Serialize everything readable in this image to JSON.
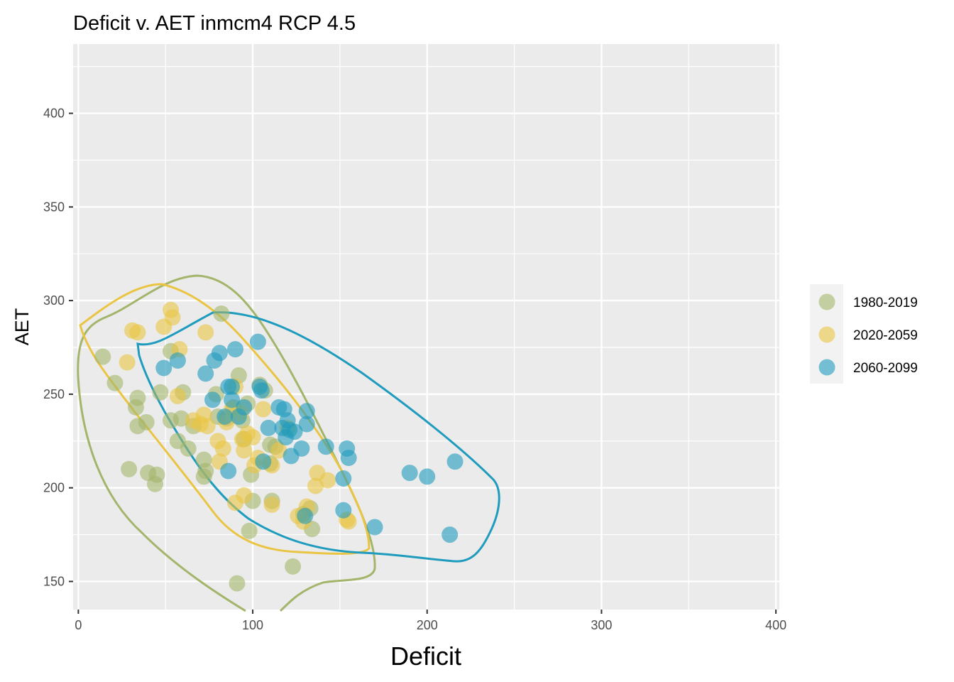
{
  "chart_data": {
    "type": "scatter",
    "title": "Deficit v. AET inmcm4 RCP 4.5",
    "xlabel": "Deficit",
    "ylabel": "AET",
    "xlim": [
      -3,
      402
    ],
    "ylim": [
      135,
      437
    ],
    "x_ticks": [
      0,
      100,
      200,
      300,
      400
    ],
    "y_ticks": [
      150,
      200,
      250,
      300,
      350,
      400
    ],
    "grid": true,
    "legend": "right",
    "series": [
      {
        "name": "1980-2019",
        "color": "#A3B56B",
        "points": [
          [
            14,
            270
          ],
          [
            21,
            256
          ],
          [
            29,
            210
          ],
          [
            33,
            243
          ],
          [
            34,
            233
          ],
          [
            34,
            248
          ],
          [
            39,
            235
          ],
          [
            40,
            208
          ],
          [
            44,
            202
          ],
          [
            45,
            207
          ],
          [
            47,
            251
          ],
          [
            53,
            273
          ],
          [
            53,
            236
          ],
          [
            57,
            225
          ],
          [
            59,
            237
          ],
          [
            60,
            251
          ],
          [
            63,
            221
          ],
          [
            66,
            233
          ],
          [
            72,
            215
          ],
          [
            72,
            206
          ],
          [
            73,
            209
          ],
          [
            79,
            250
          ],
          [
            80,
            238
          ],
          [
            82,
            293
          ],
          [
            85,
            237
          ],
          [
            89,
            243
          ],
          [
            92,
            260
          ],
          [
            91,
            149
          ],
          [
            94,
            236
          ],
          [
            95,
            226
          ],
          [
            97,
            245
          ],
          [
            98,
            177
          ],
          [
            99,
            207
          ],
          [
            100,
            193
          ],
          [
            104,
            255
          ],
          [
            107,
            252
          ],
          [
            110,
            223
          ],
          [
            110,
            213
          ],
          [
            111,
            193
          ],
          [
            113,
            222
          ],
          [
            123,
            158
          ],
          [
            129,
            186
          ],
          [
            133,
            189
          ],
          [
            134,
            178
          ]
        ]
      },
      {
        "name": "2020-2059",
        "color": "#EAC443",
        "points": [
          [
            28,
            267
          ],
          [
            31,
            284
          ],
          [
            34,
            283
          ],
          [
            49,
            286
          ],
          [
            53,
            295
          ],
          [
            54,
            291
          ],
          [
            58,
            274
          ],
          [
            57,
            249
          ],
          [
            66,
            236
          ],
          [
            70,
            234
          ],
          [
            72,
            239
          ],
          [
            73,
            283
          ],
          [
            74,
            233
          ],
          [
            80,
            225
          ],
          [
            81,
            214
          ],
          [
            83,
            221
          ],
          [
            85,
            235
          ],
          [
            88,
            242
          ],
          [
            90,
            254
          ],
          [
            90,
            192
          ],
          [
            93,
            240
          ],
          [
            94,
            226
          ],
          [
            95,
            220
          ],
          [
            95,
            196
          ],
          [
            97,
            229
          ],
          [
            100,
            227
          ],
          [
            101,
            212
          ],
          [
            103,
            216
          ],
          [
            106,
            242
          ],
          [
            111,
            212
          ],
          [
            111,
            191
          ],
          [
            115,
            220
          ],
          [
            120,
            232
          ],
          [
            126,
            185
          ],
          [
            129,
            182
          ],
          [
            131,
            190
          ],
          [
            136,
            201
          ],
          [
            137,
            208
          ],
          [
            143,
            204
          ],
          [
            154,
            183
          ],
          [
            155,
            182
          ]
        ]
      },
      {
        "name": "2060-2099",
        "color": "#1F9BBE",
        "points": [
          [
            49,
            264
          ],
          [
            57,
            268
          ],
          [
            73,
            261
          ],
          [
            77,
            247
          ],
          [
            78,
            268
          ],
          [
            81,
            272
          ],
          [
            84,
            238
          ],
          [
            86,
            254
          ],
          [
            86,
            209
          ],
          [
            88,
            254
          ],
          [
            88,
            247
          ],
          [
            90,
            274
          ],
          [
            92,
            238
          ],
          [
            95,
            243
          ],
          [
            103,
            278
          ],
          [
            104,
            254
          ],
          [
            105,
            252
          ],
          [
            106,
            214
          ],
          [
            109,
            232
          ],
          [
            115,
            243
          ],
          [
            117,
            232
          ],
          [
            118,
            242
          ],
          [
            119,
            227
          ],
          [
            120,
            236
          ],
          [
            121,
            231
          ],
          [
            122,
            217
          ],
          [
            124,
            230
          ],
          [
            128,
            221
          ],
          [
            130,
            185
          ],
          [
            131,
            234
          ],
          [
            131,
            241
          ],
          [
            142,
            222
          ],
          [
            152,
            188
          ],
          [
            152,
            205
          ],
          [
            154,
            221
          ],
          [
            155,
            216
          ],
          [
            170,
            179
          ],
          [
            190,
            208
          ],
          [
            200,
            206
          ],
          [
            213,
            175
          ],
          [
            216,
            214
          ]
        ]
      }
    ]
  }
}
